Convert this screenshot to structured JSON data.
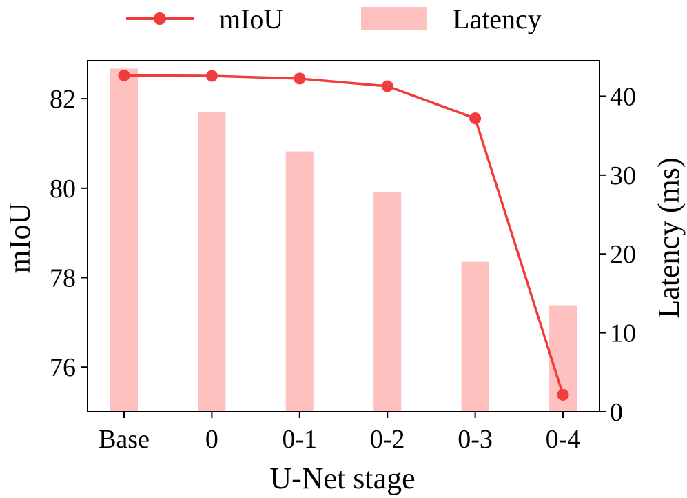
{
  "chart_data": {
    "type": "bar+line",
    "categories": [
      "Base",
      "0",
      "0-1",
      "0-2",
      "0-3",
      "0-4"
    ],
    "xlabel": "U-Net stage",
    "series": [
      {
        "name": "mIoU",
        "type": "line",
        "axis": "left",
        "color": "#f03c3c",
        "values": [
          82.52,
          82.51,
          82.45,
          82.28,
          81.56,
          75.38
        ]
      },
      {
        "name": "Latency",
        "type": "bar",
        "axis": "right",
        "color": "#ffc0c0",
        "values": [
          43.5,
          38.0,
          33.0,
          27.8,
          19.0,
          13.5
        ]
      }
    ],
    "y_left": {
      "label": "mIoU",
      "lim": [
        75.0,
        82.85
      ],
      "ticks": [
        76,
        78,
        80,
        82
      ]
    },
    "y_right": {
      "label": "Latency (ms)",
      "lim": [
        0,
        44.5
      ],
      "ticks": [
        0,
        10,
        20,
        30,
        40
      ]
    },
    "legend_position": "top-center",
    "grid": false
  }
}
